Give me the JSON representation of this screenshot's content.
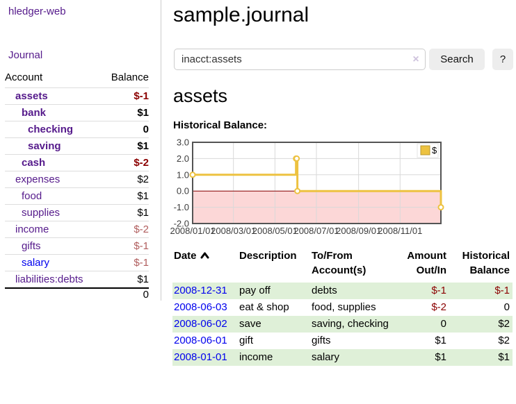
{
  "app": {
    "brand": "hledger-web",
    "nav_journal": "Journal"
  },
  "sidebar": {
    "accounts_table": {
      "headers": [
        "Account",
        "Balance"
      ],
      "rows": [
        {
          "name": "assets",
          "depth": 0,
          "bold": true,
          "balance": "$-1",
          "balance_style": "neg",
          "link_color": "purple"
        },
        {
          "name": "bank",
          "depth": 1,
          "bold": true,
          "balance": "$1",
          "balance_style": "pos",
          "link_color": "purple"
        },
        {
          "name": "checking",
          "depth": 2,
          "bold": true,
          "balance": "0",
          "balance_style": "pos",
          "link_color": "purple"
        },
        {
          "name": "saving",
          "depth": 2,
          "bold": true,
          "balance": "$1",
          "balance_style": "pos",
          "link_color": "purple"
        },
        {
          "name": "cash",
          "depth": 1,
          "bold": true,
          "balance": "$-2",
          "balance_style": "neg",
          "link_color": "purple"
        },
        {
          "name": "expenses",
          "depth": 0,
          "bold": false,
          "balance": "$2",
          "balance_style": "pos",
          "link_color": "purple"
        },
        {
          "name": "food",
          "depth": 1,
          "bold": false,
          "balance": "$1",
          "balance_style": "pos",
          "link_color": "purple"
        },
        {
          "name": "supplies",
          "depth": 1,
          "bold": false,
          "balance": "$1",
          "balance_style": "pos",
          "link_color": "purple"
        },
        {
          "name": "income",
          "depth": 0,
          "bold": false,
          "balance": "$-2",
          "balance_style": "negsoft",
          "link_color": "purple"
        },
        {
          "name": "gifts",
          "depth": 1,
          "bold": false,
          "balance": "$-1",
          "balance_style": "negsoft",
          "link_color": "purple"
        },
        {
          "name": "salary",
          "depth": 1,
          "bold": false,
          "balance": "$-1",
          "balance_style": "negsoft",
          "link_color": "blue"
        },
        {
          "name": "liabilities:debts",
          "depth": 0,
          "bold": false,
          "balance": "$1",
          "balance_style": "pos",
          "link_color": "purple"
        }
      ],
      "total": "0"
    }
  },
  "main": {
    "title": "sample.journal",
    "search": {
      "query": "inacct:assets",
      "clear_icon": "×",
      "button_label": "Search",
      "help_label": "?"
    },
    "account_heading": "assets",
    "chart_label": "Historical Balance:"
  },
  "chart_data": {
    "type": "line",
    "title": "Historical Balance",
    "step": true,
    "series": [
      {
        "name": "$",
        "color": "#edc240",
        "marker_fill": "#ffffff",
        "points": [
          [
            "2008-01-01",
            1
          ],
          [
            "2008-06-01",
            2
          ],
          [
            "2008-06-02",
            2
          ],
          [
            "2008-06-03",
            0
          ],
          [
            "2008-12-31",
            -1
          ]
        ]
      }
    ],
    "xlim": [
      "2008-01-01",
      "2008-12-31"
    ],
    "ylim": [
      -2,
      3
    ],
    "x_ticks": [
      {
        "pos": "2008-01-01",
        "label": "2008/01/01"
      },
      {
        "pos": "2008-03-01",
        "label": "2008/03/01"
      },
      {
        "pos": "2008-05-01",
        "label": "2008/05/01"
      },
      {
        "pos": "2008-07-01",
        "label": "2008/07/01"
      },
      {
        "pos": "2008-09-01",
        "label": "2008/09/01"
      },
      {
        "pos": "2008-11-01",
        "label": "2008/11/01"
      }
    ],
    "y_ticks": [
      {
        "pos": 3,
        "label": "3.0"
      },
      {
        "pos": 2,
        "label": "2.0"
      },
      {
        "pos": 1,
        "label": "1.0"
      },
      {
        "pos": 0,
        "label": "0.0"
      },
      {
        "pos": -1,
        "label": "-1.0"
      },
      {
        "pos": -2,
        "label": "-2.0"
      }
    ],
    "grid": true,
    "legend": {
      "position": "top-right",
      "label": "$"
    },
    "negative_region": {
      "fill": "#fcd7d7",
      "zero_line_color": "#8b0000"
    },
    "colors": {
      "border": "#545454",
      "gridline": "#d9d9d9",
      "tick_text": "#3c3c3c"
    }
  },
  "transactions": {
    "headers": [
      {
        "line1": "Date",
        "line2": "",
        "align": "left",
        "sortable": true
      },
      {
        "line1": "Description",
        "line2": "",
        "align": "left",
        "sortable": false
      },
      {
        "line1": "To/From",
        "line2": "Account(s)",
        "align": "left",
        "sortable": false
      },
      {
        "line1": "Amount",
        "line2": "Out/In",
        "align": "right",
        "sortable": false
      },
      {
        "line1": "Historical",
        "line2": "Balance",
        "align": "right",
        "sortable": false
      }
    ],
    "rows": [
      {
        "date": "2008-12-31",
        "description": "pay off",
        "accounts": "debts",
        "amount": "$-1",
        "amount_negative": true,
        "balance": "$-1",
        "balance_negative": true,
        "shaded": true
      },
      {
        "date": "2008-06-03",
        "description": "eat & shop",
        "accounts": "food, supplies",
        "amount": "$-2",
        "amount_negative": true,
        "balance": "0",
        "balance_negative": false,
        "shaded": false
      },
      {
        "date": "2008-06-02",
        "description": "save",
        "accounts": "saving, checking",
        "amount": "0",
        "amount_negative": false,
        "balance": "$2",
        "balance_negative": false,
        "shaded": true
      },
      {
        "date": "2008-06-01",
        "description": "gift",
        "accounts": "gifts",
        "amount": "$1",
        "amount_negative": false,
        "balance": "$2",
        "balance_negative": false,
        "shaded": false
      },
      {
        "date": "2008-01-01",
        "description": "income",
        "accounts": "salary",
        "amount": "$1",
        "amount_negative": false,
        "balance": "$1",
        "balance_negative": false,
        "shaded": true
      }
    ]
  }
}
